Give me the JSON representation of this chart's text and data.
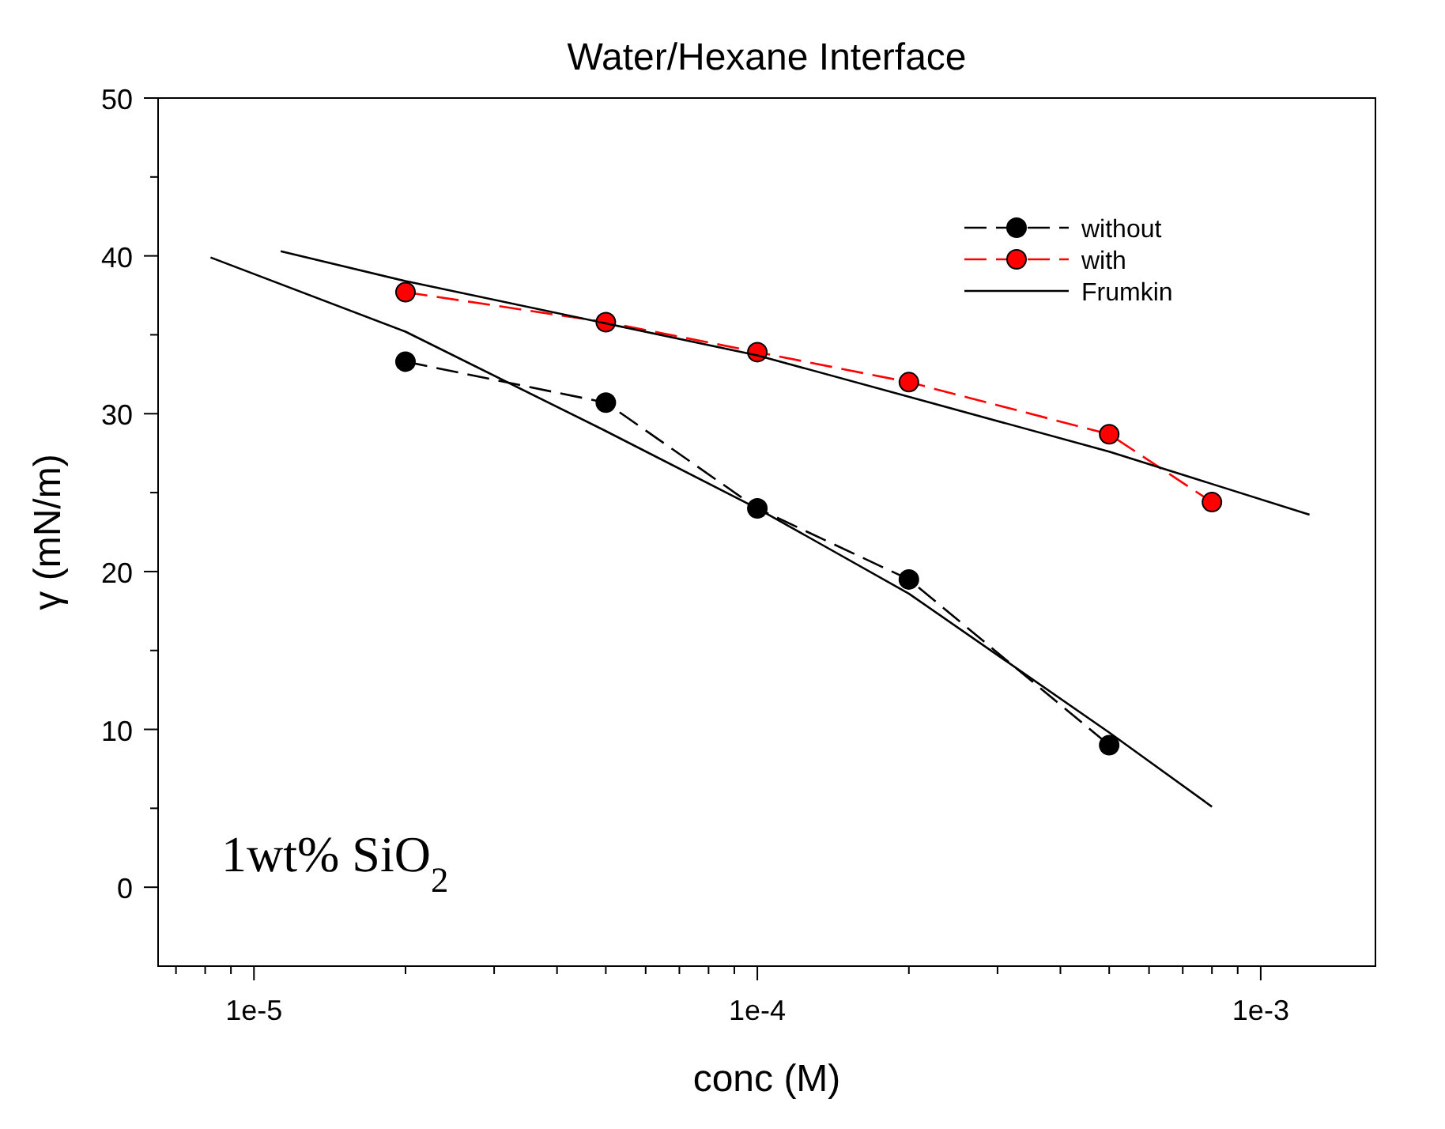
{
  "chart_data": {
    "type": "line",
    "title": "Water/Hexane Interface",
    "xlabel": "conc (M)",
    "ylabel": "γ (mN/m)",
    "log": "x",
    "xlim": [
      6.45e-06,
      0.00169
    ],
    "xticks": [
      {
        "value": 1e-05,
        "label": "1e-5"
      },
      {
        "value": 0.0001,
        "label": "1e-4"
      },
      {
        "value": 0.001,
        "label": "1e-3"
      },
      {
        "value": 7e-06,
        "label": null
      },
      {
        "value": 8e-06,
        "label": null
      },
      {
        "value": 9e-06,
        "label": null
      },
      {
        "value": 2e-05,
        "label": null
      },
      {
        "value": 3e-05,
        "label": null
      },
      {
        "value": 4e-05,
        "label": null
      },
      {
        "value": 5e-05,
        "label": null
      },
      {
        "value": 6e-05,
        "label": null
      },
      {
        "value": 7e-05,
        "label": null
      },
      {
        "value": 8e-05,
        "label": null
      },
      {
        "value": 9e-05,
        "label": null
      },
      {
        "value": 0.0002,
        "label": null
      },
      {
        "value": 0.0003,
        "label": null
      },
      {
        "value": 0.0004,
        "label": null
      },
      {
        "value": 0.0005,
        "label": null
      },
      {
        "value": 0.0006,
        "label": null
      },
      {
        "value": 0.0007,
        "label": null
      },
      {
        "value": 0.0008,
        "label": null
      },
      {
        "value": 0.0009,
        "label": null
      }
    ],
    "ylim": [
      -5,
      50
    ],
    "yticks": [
      0,
      10,
      20,
      30,
      40,
      50,
      {
        "value": 5,
        "label": null
      },
      {
        "value": 15,
        "label": null
      },
      {
        "value": 25,
        "label": null
      },
      {
        "value": 35,
        "label": null
      },
      {
        "value": 45,
        "label": null
      }
    ],
    "grid": false,
    "legend": "top right",
    "annotations": [
      "1wt% SiO$_{2}$"
    ],
    "series": [
      {
        "name": "without",
        "color": "#000000",
        "marker": "circle",
        "line_style": "dashed",
        "x": [
          2e-05,
          5e-05,
          0.0001,
          0.0002,
          0.0005
        ],
        "values": [
          33.3,
          30.7,
          24.0,
          19.5,
          9.0
        ]
      },
      {
        "name": "with",
        "color": "#ff0000",
        "marker": "circle",
        "line_style": "dashed",
        "x": [
          2e-05,
          5e-05,
          0.0001,
          0.0002,
          0.0005,
          0.0008
        ],
        "values": [
          37.7,
          35.8,
          33.9,
          32.0,
          28.7,
          24.4
        ]
      },
      {
        "name": "Frumkin",
        "color": "#000000",
        "marker": "none",
        "line_style": "solid",
        "x": [
          1.13e-05,
          2e-05,
          0.0001,
          0.0005,
          0.00125
        ],
        "values": [
          40.3,
          38.4,
          33.7,
          27.6,
          23.6
        ]
      },
      {
        "color": "#000000",
        "marker": "none",
        "line_style": "solid",
        "x": [
          8.2e-06,
          2e-05,
          5e-05,
          0.0001,
          0.0002,
          0.0005,
          0.0008
        ],
        "values": [
          39.9,
          35.2,
          28.9,
          24.0,
          18.6,
          9.8,
          5.1
        ]
      }
    ]
  }
}
